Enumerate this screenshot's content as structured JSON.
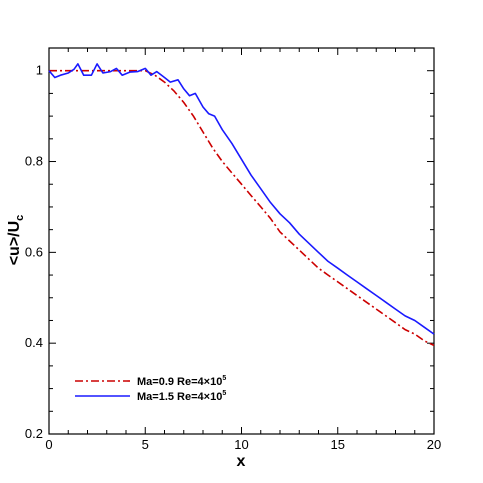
{
  "chart_data": {
    "type": "line",
    "xlabel": "x",
    "ylabel": {
      "main": "<u>/U",
      "sub": "c"
    },
    "xlim": [
      0,
      20
    ],
    "ylim": [
      0.2,
      1.05
    ],
    "xticks": [
      0,
      5,
      10,
      15,
      20
    ],
    "xtick_labels": [
      "0",
      "5",
      "10",
      "15",
      "20"
    ],
    "yticks": [
      0.2,
      0.4,
      0.6,
      0.8,
      1.0
    ],
    "ytick_labels": [
      "0.2",
      "0.4",
      "0.6",
      "0.8",
      "1"
    ],
    "grid": false,
    "legend_position": "bottom-left",
    "series": [
      {
        "name": "Ma=0.9 Re=4×10",
        "name_sup": "5",
        "color": "#cc0000",
        "dash": "dashdot",
        "x": [
          0,
          1,
          2,
          3,
          4,
          5,
          5.5,
          6,
          6.5,
          7,
          7.5,
          8,
          8.5,
          9,
          9.5,
          10,
          10.5,
          11,
          11.5,
          12,
          12.5,
          13,
          13.5,
          14,
          14.5,
          15,
          15.5,
          16,
          16.5,
          17,
          17.5,
          18,
          18.5,
          19,
          19.5,
          20
        ],
        "y": [
          1.0,
          1.0,
          1.0,
          1.0,
          1.0,
          1.0,
          0.99,
          0.975,
          0.955,
          0.93,
          0.9,
          0.865,
          0.83,
          0.8,
          0.775,
          0.75,
          0.725,
          0.7,
          0.675,
          0.645,
          0.625,
          0.605,
          0.585,
          0.565,
          0.55,
          0.535,
          0.52,
          0.505,
          0.49,
          0.475,
          0.46,
          0.445,
          0.43,
          0.42,
          0.405,
          0.395
        ]
      },
      {
        "name": "Ma=1.5 Re=4×10",
        "name_sup": "5",
        "color": "#1a1aff",
        "dash": "solid",
        "x": [
          0,
          0.3,
          0.6,
          1.0,
          1.3,
          1.5,
          1.8,
          2.2,
          2.5,
          2.8,
          3.2,
          3.5,
          3.8,
          4.2,
          4.6,
          5.0,
          5.3,
          5.6,
          6.0,
          6.3,
          6.7,
          7.0,
          7.3,
          7.6,
          8.0,
          8.3,
          8.6,
          9.0,
          9.5,
          10,
          10.5,
          11,
          11.5,
          12,
          12.5,
          13,
          13.5,
          14,
          14.5,
          15,
          15.5,
          16,
          16.5,
          17,
          17.5,
          18,
          18.5,
          19,
          19.5,
          20
        ],
        "y": [
          1.0,
          0.985,
          0.99,
          0.995,
          1.003,
          1.015,
          0.99,
          0.99,
          1.015,
          0.995,
          0.998,
          1.005,
          0.99,
          0.997,
          0.998,
          1.005,
          0.99,
          0.998,
          0.985,
          0.975,
          0.98,
          0.96,
          0.945,
          0.95,
          0.92,
          0.905,
          0.9,
          0.87,
          0.84,
          0.805,
          0.77,
          0.74,
          0.71,
          0.685,
          0.665,
          0.64,
          0.62,
          0.6,
          0.58,
          0.565,
          0.55,
          0.535,
          0.52,
          0.505,
          0.49,
          0.475,
          0.46,
          0.45,
          0.435,
          0.42
        ]
      }
    ]
  }
}
